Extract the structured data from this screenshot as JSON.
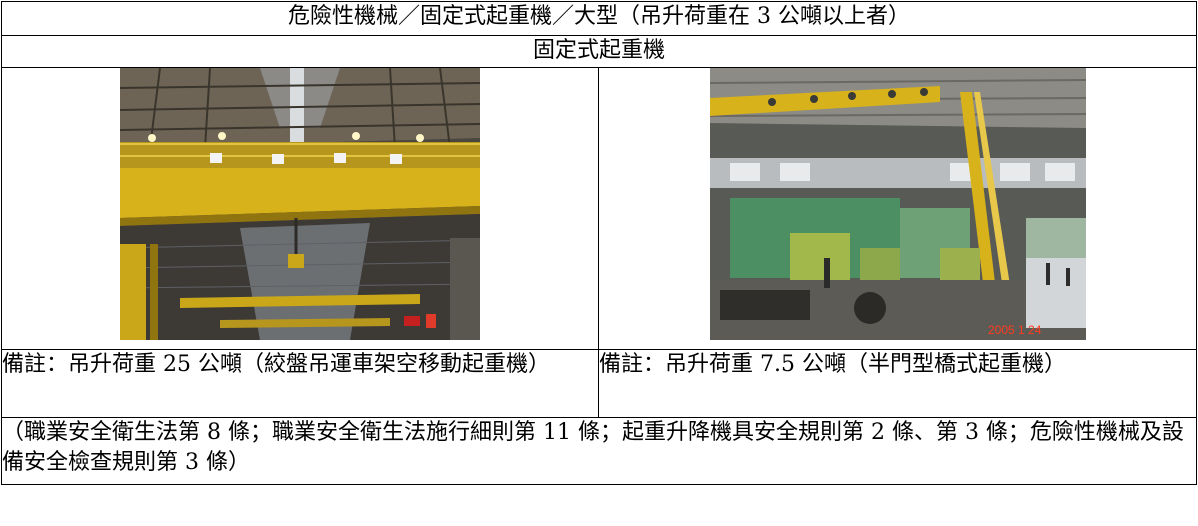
{
  "document": {
    "title": "危險性機械／固定式起重機／大型（吊升荷重在 3 公噸以上者）",
    "subtitle": "固定式起重機",
    "left_note": "備註：吊升荷重 25 公噸（絞盤吊運車架空移動起重機）",
    "right_note": "備註：吊升荷重 7.5 公噸（半門型橋式起重機）",
    "legal_refs": "（職業安全衛生法第 8 條；職業安全衛生法施行細則第 11 條；起重升降機具安全規則第 2 條、第 3 條；危險性機械及設備安全檢查規則第 3 條）"
  },
  "photos": {
    "left_overhead_crane_timestamp": "",
    "right_gantry_crane_timestamp": "2005  1 24"
  },
  "colors": {
    "crane_yellow": "#d8b21a",
    "grid_border": "#000000",
    "timestamp_red": "#ff3b1f"
  }
}
